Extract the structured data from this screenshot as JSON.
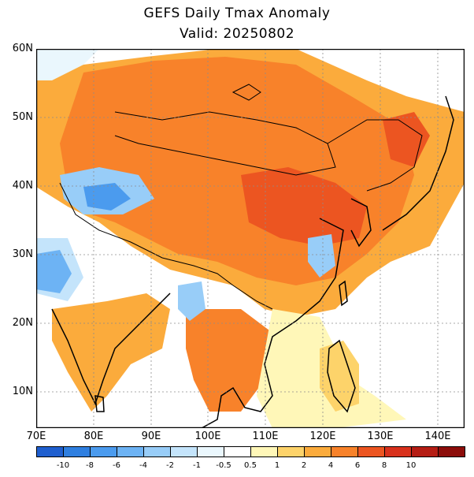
{
  "title": "GEFS Daily Tmax Anomaly",
  "subtitle": "Valid: 20250802",
  "lat_labels": [
    "60N",
    "50N",
    "40N",
    "30N",
    "20N",
    "10N"
  ],
  "lon_labels": [
    "70E",
    "80E",
    "90E",
    "100E",
    "110E",
    "120E",
    "130E",
    "140E"
  ],
  "colorbar": {
    "colors": [
      "#1f5fcf",
      "#2f7fe0",
      "#4b9bee",
      "#6db3f4",
      "#98cdf8",
      "#c4e4fb",
      "#eaf7fd",
      "#ffffff",
      "#fff7b8",
      "#fdd36a",
      "#fbab3c",
      "#f8822a",
      "#ec5521",
      "#d8311c",
      "#b51d14",
      "#8c0d0a"
    ],
    "labels": [
      "-10",
      "-8",
      "-6",
      "-4",
      "-2",
      "-1",
      "-0.5",
      "0.5",
      "1",
      "2",
      "4",
      "6",
      "8",
      "10"
    ]
  }
}
